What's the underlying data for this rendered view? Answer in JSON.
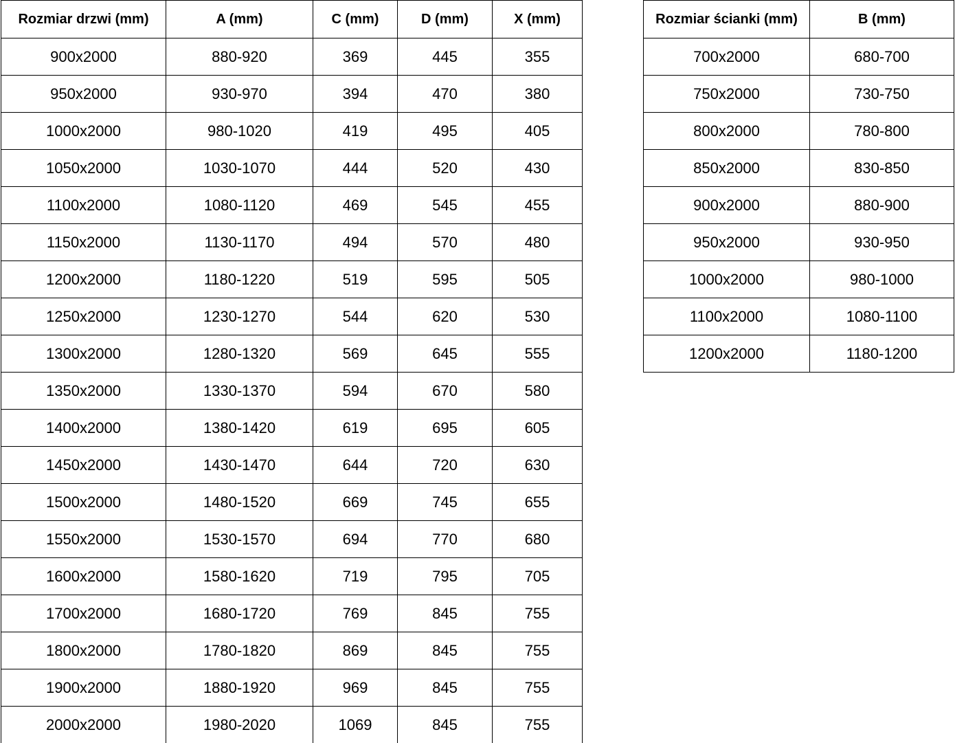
{
  "colors": {
    "border": "#000000",
    "text": "#000000",
    "background": "#ffffff"
  },
  "door_table": {
    "headers": [
      "Rozmiar drzwi (mm)",
      "A (mm)",
      "C (mm)",
      "D (mm)",
      "X (mm)"
    ],
    "rows": [
      [
        "900x2000",
        "880-920",
        "369",
        "445",
        "355"
      ],
      [
        "950x2000",
        "930-970",
        "394",
        "470",
        "380"
      ],
      [
        "1000x2000",
        "980-1020",
        "419",
        "495",
        "405"
      ],
      [
        "1050x2000",
        "1030-1070",
        "444",
        "520",
        "430"
      ],
      [
        "1100x2000",
        "1080-1120",
        "469",
        "545",
        "455"
      ],
      [
        "1150x2000",
        "1130-1170",
        "494",
        "570",
        "480"
      ],
      [
        "1200x2000",
        "1180-1220",
        "519",
        "595",
        "505"
      ],
      [
        "1250x2000",
        "1230-1270",
        "544",
        "620",
        "530"
      ],
      [
        "1300x2000",
        "1280-1320",
        "569",
        "645",
        "555"
      ],
      [
        "1350x2000",
        "1330-1370",
        "594",
        "670",
        "580"
      ],
      [
        "1400x2000",
        "1380-1420",
        "619",
        "695",
        "605"
      ],
      [
        "1450x2000",
        "1430-1470",
        "644",
        "720",
        "630"
      ],
      [
        "1500x2000",
        "1480-1520",
        "669",
        "745",
        "655"
      ],
      [
        "1550x2000",
        "1530-1570",
        "694",
        "770",
        "680"
      ],
      [
        "1600x2000",
        "1580-1620",
        "719",
        "795",
        "705"
      ],
      [
        "1700x2000",
        "1680-1720",
        "769",
        "845",
        "755"
      ],
      [
        "1800x2000",
        "1780-1820",
        "869",
        "845",
        "755"
      ],
      [
        "1900x2000",
        "1880-1920",
        "969",
        "845",
        "755"
      ],
      [
        "2000x2000",
        "1980-2020",
        "1069",
        "845",
        "755"
      ]
    ]
  },
  "wall_table": {
    "headers": [
      "Rozmiar ścianki (mm)",
      "B (mm)"
    ],
    "rows": [
      [
        "700x2000",
        "680-700"
      ],
      [
        "750x2000",
        "730-750"
      ],
      [
        "800x2000",
        "780-800"
      ],
      [
        "850x2000",
        "830-850"
      ],
      [
        "900x2000",
        "880-900"
      ],
      [
        "950x2000",
        "930-950"
      ],
      [
        "1000x2000",
        "980-1000"
      ],
      [
        "1100x2000",
        "1080-1100"
      ],
      [
        "1200x2000",
        "1180-1200"
      ]
    ]
  }
}
